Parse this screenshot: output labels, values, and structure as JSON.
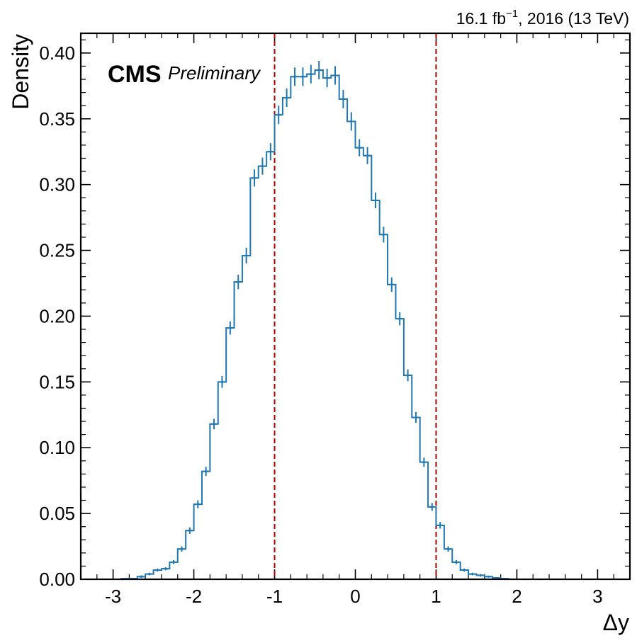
{
  "chart_data": {
    "type": "histogram",
    "xlabel": "Δy",
    "ylabel": "Density",
    "xlim": [
      -3.4,
      3.4
    ],
    "ylim": [
      0.0,
      0.415
    ],
    "xticks": [
      -3,
      -2,
      -1,
      0,
      1,
      2,
      3
    ],
    "xtick_labels": [
      "-3",
      "-2",
      "-1",
      "0",
      "1",
      "2",
      "3"
    ],
    "yticks": [
      0.0,
      0.05,
      0.1,
      0.15,
      0.2,
      0.25,
      0.3,
      0.35,
      0.4
    ],
    "ytick_labels": [
      "0.00",
      "0.05",
      "0.10",
      "0.15",
      "0.20",
      "0.25",
      "0.30",
      "0.35",
      "0.40"
    ],
    "bin_edges": [
      -3.0,
      -2.9,
      -2.8,
      -2.7,
      -2.6,
      -2.5,
      -2.4,
      -2.3,
      -2.2,
      -2.1,
      -2.0,
      -1.9,
      -1.8,
      -1.7,
      -1.6,
      -1.5,
      -1.4,
      -1.3,
      -1.2,
      -1.1,
      -1.0,
      -0.9,
      -0.8,
      -0.7,
      -0.6,
      -0.5,
      -0.4,
      -0.3,
      -0.2,
      -0.1,
      0.0,
      0.1,
      0.2,
      0.3,
      0.4,
      0.5,
      0.6,
      0.7,
      0.8,
      0.9,
      1.0,
      1.1,
      1.2,
      1.3,
      1.4,
      1.5,
      1.6,
      1.7,
      1.8,
      1.9,
      2.0,
      2.1,
      2.2,
      2.3,
      2.4,
      2.5,
      2.6,
      2.7,
      2.8,
      2.9,
      3.0
    ],
    "series": [
      {
        "values": [
          0.0,
          0.0005,
          0.0005,
          0.002,
          0.004,
          0.007,
          0.008,
          0.013,
          0.023,
          0.037,
          0.057,
          0.082,
          0.118,
          0.15,
          0.191,
          0.226,
          0.246,
          0.305,
          0.314,
          0.325,
          0.353,
          0.366,
          0.382,
          0.382,
          0.384,
          0.387,
          0.381,
          0.383,
          0.365,
          0.348,
          0.328,
          0.322,
          0.288,
          0.262,
          0.224,
          0.198,
          0.155,
          0.123,
          0.089,
          0.055,
          0.041,
          0.023,
          0.013,
          0.007,
          0.004,
          0.003,
          0.002,
          0.001,
          0.0005,
          0.0,
          0.0,
          0.0,
          0.0,
          0.0,
          0.0,
          0.0,
          0.0,
          0.0,
          0.0,
          0.0
        ],
        "errors": [
          0.0,
          0.0005,
          0.0005,
          0.001,
          0.001,
          0.0012,
          0.0012,
          0.0015,
          0.002,
          0.0025,
          0.003,
          0.0035,
          0.004,
          0.0045,
          0.005,
          0.0055,
          0.006,
          0.0065,
          0.0065,
          0.0065,
          0.007,
          0.007,
          0.007,
          0.007,
          0.007,
          0.007,
          0.007,
          0.007,
          0.007,
          0.007,
          0.0065,
          0.0065,
          0.006,
          0.006,
          0.0055,
          0.005,
          0.0045,
          0.004,
          0.0035,
          0.003,
          0.0025,
          0.002,
          0.0015,
          0.0012,
          0.001,
          0.001,
          0.0008,
          0.0005,
          0.0005,
          0.0,
          0.0,
          0.0,
          0.0,
          0.0,
          0.0,
          0.0,
          0.0,
          0.0,
          0.0,
          0.0
        ],
        "color": "#1f77b4"
      }
    ],
    "vlines": [
      {
        "x": -1.0,
        "style": "dashed",
        "color": "#b30000"
      },
      {
        "x": 1.0,
        "style": "dashed",
        "color": "#b30000"
      }
    ],
    "grid": false,
    "legend": "none"
  },
  "labels": {
    "cms": "CMS",
    "preliminary": "Preliminary",
    "lumi_prefix": "16.1 fb",
    "lumi_sup": "−1",
    "lumi_suffix": ", 2016 (13 TeV)"
  }
}
